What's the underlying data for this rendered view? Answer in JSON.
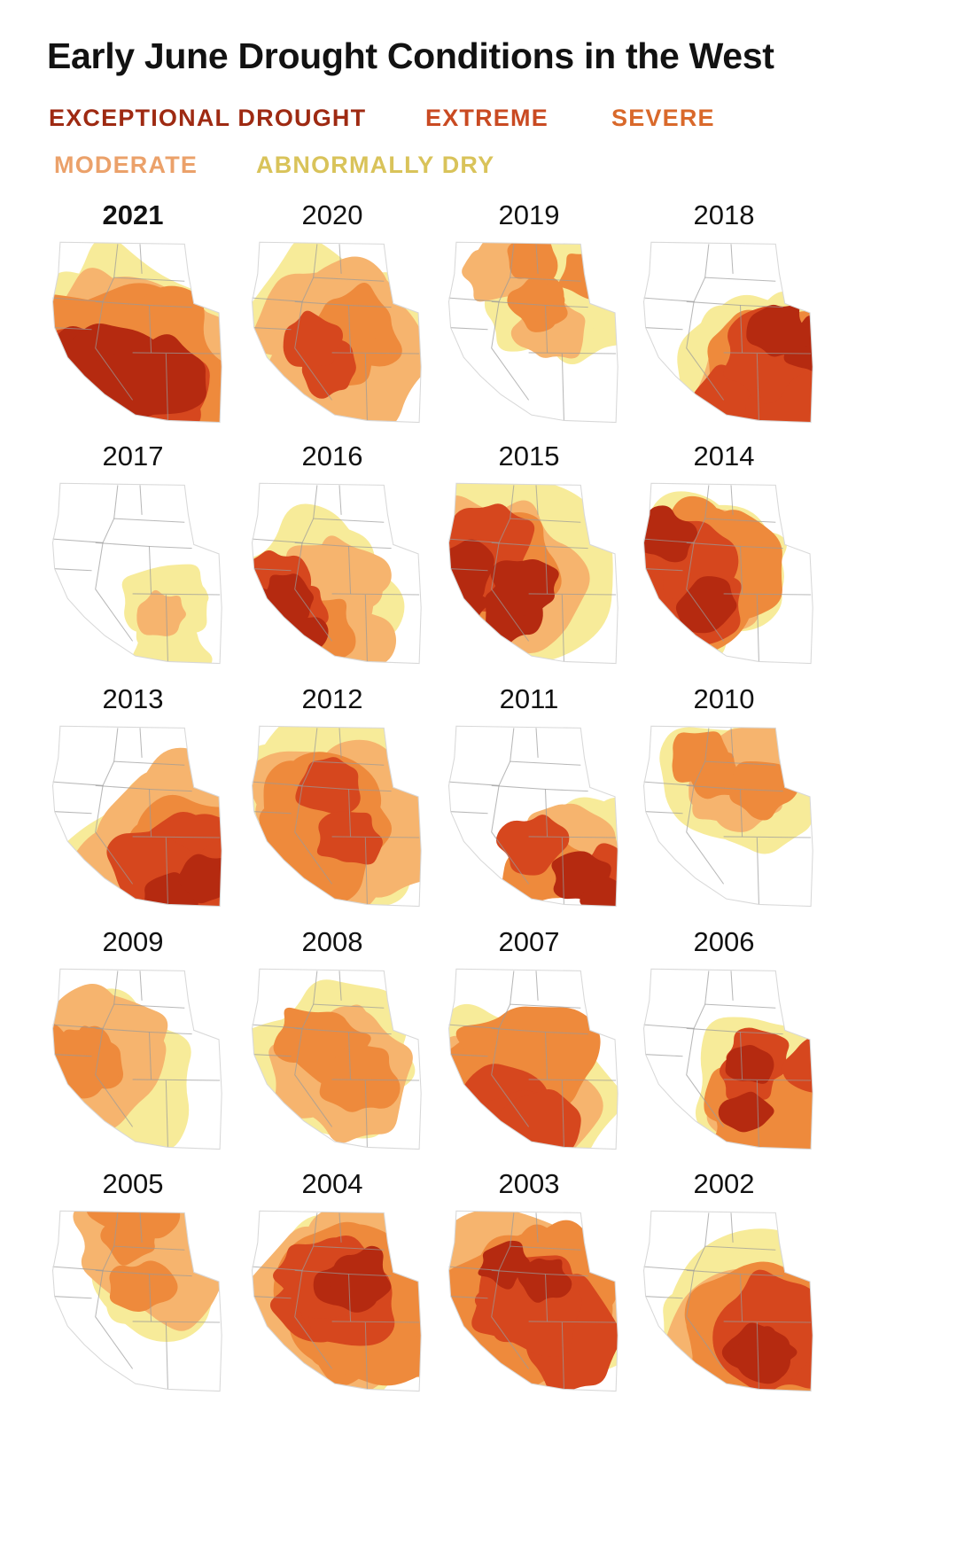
{
  "title": "Early June Drought Conditions in the West",
  "legend": [
    {
      "label": "EXCEPTIONAL DROUGHT",
      "color": "#9e2a12"
    },
    {
      "label": "EXTREME",
      "color": "#c94a22"
    },
    {
      "label": "SEVERE",
      "color": "#d9692b"
    },
    {
      "label": "MODERATE",
      "color": "#eba16a"
    },
    {
      "label": "ABNORMALLY DRY",
      "color": "#d9c35a"
    }
  ],
  "fill_colors": {
    "exceptional": "#b52a10",
    "extreme": "#d6471e",
    "severe": "#ee8a3c",
    "moderate": "#f6b46e",
    "dry": "#f7eb99",
    "none": "#ffffff",
    "border": "#9a9a9a"
  },
  "panels": [
    {
      "year": "2021",
      "current": true,
      "levels": {
        "dry": 1.0,
        "moderate": 0.85,
        "severe": 0.75,
        "extreme": 0.55,
        "exceptional": 0.45
      },
      "focus": "southwest"
    },
    {
      "year": "2020",
      "levels": {
        "dry": 0.8,
        "moderate": 0.6,
        "severe": 0.35,
        "extreme": 0.1,
        "exceptional": 0
      },
      "focus": "center"
    },
    {
      "year": "2019",
      "levels": {
        "dry": 0.3,
        "moderate": 0.15,
        "severe": 0.05,
        "extreme": 0,
        "exceptional": 0
      },
      "focus": "north"
    },
    {
      "year": "2018",
      "levels": {
        "dry": 0.8,
        "moderate": 0.55,
        "severe": 0.45,
        "extreme": 0.3,
        "exceptional": 0.12
      },
      "focus": "southeast"
    },
    {
      "year": "2017",
      "levels": {
        "dry": 0.25,
        "moderate": 0.05,
        "severe": 0,
        "extreme": 0,
        "exceptional": 0
      },
      "focus": "south"
    },
    {
      "year": "2016",
      "levels": {
        "dry": 0.75,
        "moderate": 0.35,
        "severe": 0.2,
        "extreme": 0.1,
        "exceptional": 0.05
      },
      "focus": "southwest"
    },
    {
      "year": "2015",
      "levels": {
        "dry": 0.85,
        "moderate": 0.65,
        "severe": 0.45,
        "extreme": 0.3,
        "exceptional": 0.15
      },
      "focus": "west"
    },
    {
      "year": "2014",
      "levels": {
        "dry": 0.85,
        "moderate": 0.75,
        "severe": 0.55,
        "extreme": 0.3,
        "exceptional": 0.1
      },
      "focus": "west"
    },
    {
      "year": "2013",
      "levels": {
        "dry": 0.95,
        "moderate": 0.9,
        "severe": 0.55,
        "extreme": 0.3,
        "exceptional": 0.1
      },
      "focus": "southeast"
    },
    {
      "year": "2012",
      "levels": {
        "dry": 0.9,
        "moderate": 0.75,
        "severe": 0.45,
        "extreme": 0.15,
        "exceptional": 0
      },
      "focus": "center"
    },
    {
      "year": "2011",
      "levels": {
        "dry": 0.3,
        "moderate": 0.25,
        "severe": 0.2,
        "extreme": 0.15,
        "exceptional": 0.08
      },
      "focus": "southeast"
    },
    {
      "year": "2010",
      "levels": {
        "dry": 0.6,
        "moderate": 0.3,
        "severe": 0.1,
        "extreme": 0,
        "exceptional": 0
      },
      "focus": "north"
    },
    {
      "year": "2009",
      "levels": {
        "dry": 0.75,
        "moderate": 0.5,
        "severe": 0.15,
        "extreme": 0,
        "exceptional": 0
      },
      "focus": "west"
    },
    {
      "year": "2008",
      "levels": {
        "dry": 0.75,
        "moderate": 0.5,
        "severe": 0.2,
        "extreme": 0,
        "exceptional": 0
      },
      "focus": "center"
    },
    {
      "year": "2007",
      "levels": {
        "dry": 0.9,
        "moderate": 0.8,
        "severe": 0.55,
        "extreme": 0.25,
        "exceptional": 0
      },
      "focus": "southwest"
    },
    {
      "year": "2006",
      "levels": {
        "dry": 0.55,
        "moderate": 0.45,
        "severe": 0.25,
        "extreme": 0.12,
        "exceptional": 0.03
      },
      "focus": "southeast"
    },
    {
      "year": "2005",
      "levels": {
        "dry": 0.55,
        "moderate": 0.4,
        "severe": 0.1,
        "extreme": 0,
        "exceptional": 0
      },
      "focus": "north"
    },
    {
      "year": "2004",
      "levels": {
        "dry": 0.9,
        "moderate": 0.8,
        "severe": 0.6,
        "extreme": 0.3,
        "exceptional": 0.08
      },
      "focus": "center"
    },
    {
      "year": "2003",
      "levels": {
        "dry": 0.85,
        "moderate": 0.75,
        "severe": 0.65,
        "extreme": 0.45,
        "exceptional": 0.05
      },
      "focus": "center"
    },
    {
      "year": "2002",
      "levels": {
        "dry": 0.9,
        "moderate": 0.85,
        "severe": 0.7,
        "extreme": 0.45,
        "exceptional": 0.1
      },
      "focus": "southeast"
    }
  ]
}
